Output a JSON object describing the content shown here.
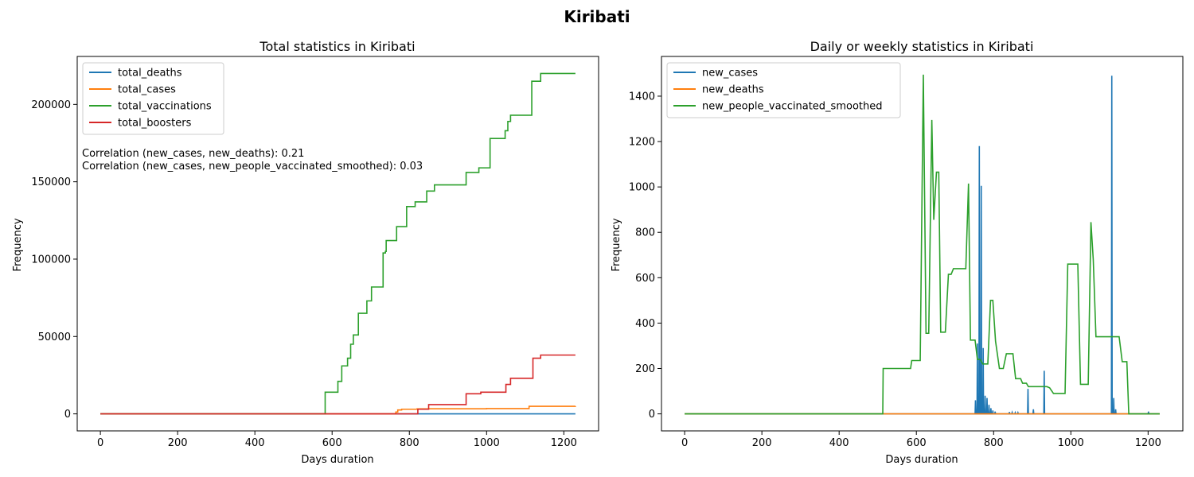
{
  "figure_title": "Kiribati",
  "chart_data": [
    {
      "type": "line",
      "title": "Total statistics in Kiribati",
      "xlabel": "Days duration",
      "ylabel": "Frequency",
      "xlim": [
        -60,
        1290
      ],
      "ylim": [
        -11000,
        231000
      ],
      "xticks": [
        0,
        200,
        400,
        600,
        800,
        1000,
        1200
      ],
      "yticks": [
        0,
        50000,
        100000,
        150000,
        200000
      ],
      "grid": false,
      "legend_position": "top-left",
      "annotations": [
        "Correlation (new_cases, new_deaths): 0.21",
        "Correlation (new_cases, new_people_vaccinated_smoothed): 0.03"
      ],
      "series": [
        {
          "name": "total_deaths",
          "color": "#1f77b4",
          "step": true,
          "points": [
            [
              0,
              0
            ],
            [
              1230,
              0
            ]
          ]
        },
        {
          "name": "total_cases",
          "color": "#ff7f0e",
          "step": true,
          "points": [
            [
              0,
              0
            ],
            [
              760,
              0
            ],
            [
              765,
              1200
            ],
            [
              770,
              2500
            ],
            [
              780,
              3000
            ],
            [
              820,
              3200
            ],
            [
              850,
              3300
            ],
            [
              1000,
              3400
            ],
            [
              1110,
              4900
            ],
            [
              1230,
              5000
            ]
          ]
        },
        {
          "name": "total_vaccinations",
          "color": "#2ca02c",
          "step": true,
          "points": [
            [
              0,
              0
            ],
            [
              580,
              0
            ],
            [
              582,
              14000
            ],
            [
              612,
              14000
            ],
            [
              615,
              21000
            ],
            [
              625,
              31000
            ],
            [
              640,
              36000
            ],
            [
              648,
              45000
            ],
            [
              655,
              51000
            ],
            [
              668,
              65000
            ],
            [
              690,
              73000
            ],
            [
              702,
              82000
            ],
            [
              730,
              82000
            ],
            [
              732,
              104000
            ],
            [
              738,
              105000
            ],
            [
              740,
              112000
            ],
            [
              765,
              112000
            ],
            [
              767,
              121000
            ],
            [
              793,
              134000
            ],
            [
              800,
              134000
            ],
            [
              815,
              137000
            ],
            [
              845,
              144000
            ],
            [
              865,
              148000
            ],
            [
              945,
              148000
            ],
            [
              947,
              156000
            ],
            [
              975,
              156000
            ],
            [
              980,
              159000
            ],
            [
              1007,
              159000
            ],
            [
              1009,
              178000
            ],
            [
              1045,
              178000
            ],
            [
              1048,
              183000
            ],
            [
              1055,
              189000
            ],
            [
              1062,
              193000
            ],
            [
              1115,
              193000
            ],
            [
              1117,
              215000
            ],
            [
              1140,
              220000
            ],
            [
              1230,
              220000
            ]
          ]
        },
        {
          "name": "total_boosters",
          "color": "#d62728",
          "step": true,
          "points": [
            [
              0,
              0
            ],
            [
              820,
              0
            ],
            [
              822,
              3000
            ],
            [
              850,
              6000
            ],
            [
              945,
              6000
            ],
            [
              947,
              13000
            ],
            [
              985,
              14000
            ],
            [
              1048,
              14000
            ],
            [
              1050,
              19000
            ],
            [
              1062,
              23000
            ],
            [
              1118,
              23000
            ],
            [
              1120,
              36000
            ],
            [
              1140,
              38000
            ],
            [
              1230,
              38000
            ]
          ]
        }
      ]
    },
    {
      "type": "line",
      "title": "Daily or weekly statistics in Kiribati",
      "xlabel": "Days duration",
      "ylabel": "Frequency",
      "xlim": [
        -60,
        1290
      ],
      "ylim": [
        -75,
        1575
      ],
      "xticks": [
        0,
        200,
        400,
        600,
        800,
        1000,
        1200
      ],
      "yticks": [
        0,
        200,
        400,
        600,
        800,
        1000,
        1200,
        1400
      ],
      "grid": false,
      "legend_position": "top-left",
      "series": [
        {
          "name": "new_cases",
          "color": "#1f77b4",
          "step": false,
          "points": [
            [
              0,
              0
            ],
            [
              752,
              0
            ],
            [
              753,
              60
            ],
            [
              754,
              0
            ],
            [
              757,
              0
            ],
            [
              758,
              310
            ],
            [
              759,
              0
            ],
            [
              762,
              0
            ],
            [
              763,
              1180
            ],
            [
              764,
              0
            ],
            [
              767,
              0
            ],
            [
              768,
              1005
            ],
            [
              769,
              0
            ],
            [
              772,
              0
            ],
            [
              773,
              290
            ],
            [
              774,
              0
            ],
            [
              777,
              0
            ],
            [
              778,
              80
            ],
            [
              779,
              0
            ],
            [
              782,
              0
            ],
            [
              783,
              70
            ],
            [
              784,
              0
            ],
            [
              787,
              0
            ],
            [
              788,
              40
            ],
            [
              789,
              0
            ],
            [
              792,
              0
            ],
            [
              793,
              25
            ],
            [
              794,
              0
            ],
            [
              797,
              0
            ],
            [
              798,
              15
            ],
            [
              799,
              0
            ],
            [
              803,
              0
            ],
            [
              804,
              10
            ],
            [
              805,
              0
            ],
            [
              840,
              0
            ],
            [
              841,
              8
            ],
            [
              842,
              0
            ],
            [
              847,
              0
            ],
            [
              848,
              6
            ],
            [
              849,
              0
            ],
            [
              855,
              0
            ],
            [
              856,
              5
            ],
            [
              857,
              0
            ],
            [
              862,
              0
            ],
            [
              863,
              5
            ],
            [
              864,
              0
            ],
            [
              888,
              0
            ],
            [
              889,
              110
            ],
            [
              890,
              0
            ],
            [
              902,
              0
            ],
            [
              903,
              20
            ],
            [
              904,
              0
            ],
            [
              930,
              0
            ],
            [
              931,
              190
            ],
            [
              932,
              0
            ],
            [
              1105,
              0
            ],
            [
              1106,
              1490
            ],
            [
              1107,
              0
            ],
            [
              1110,
              0
            ],
            [
              1111,
              70
            ],
            [
              1112,
              0
            ],
            [
              1115,
              0
            ],
            [
              1116,
              20
            ],
            [
              1117,
              0
            ],
            [
              1200,
              0
            ],
            [
              1201,
              10
            ],
            [
              1202,
              0
            ],
            [
              1230,
              0
            ]
          ]
        },
        {
          "name": "new_deaths",
          "color": "#ff7f0e",
          "step": false,
          "points": [
            [
              0,
              0
            ],
            [
              1230,
              0
            ]
          ]
        },
        {
          "name": "new_people_vaccinated_smoothed",
          "color": "#2ca02c",
          "step": false,
          "points": [
            [
              0,
              0
            ],
            [
              513,
              0
            ],
            [
              514,
              200
            ],
            [
              585,
              200
            ],
            [
              588,
              235
            ],
            [
              610,
              235
            ],
            [
              618,
              1495
            ],
            [
              625,
              355
            ],
            [
              632,
              355
            ],
            [
              640,
              1295
            ],
            [
              645,
              855
            ],
            [
              652,
              1065
            ],
            [
              658,
              1065
            ],
            [
              663,
              360
            ],
            [
              675,
              360
            ],
            [
              683,
              615
            ],
            [
              690,
              615
            ],
            [
              696,
              640
            ],
            [
              728,
              640
            ],
            [
              735,
              1015
            ],
            [
              740,
              325
            ],
            [
              752,
              325
            ],
            [
              758,
              240
            ],
            [
              765,
              240
            ],
            [
              772,
              220
            ],
            [
              785,
              220
            ],
            [
              792,
              500
            ],
            [
              798,
              500
            ],
            [
              805,
              320
            ],
            [
              815,
              200
            ],
            [
              825,
              200
            ],
            [
              833,
              265
            ],
            [
              850,
              265
            ],
            [
              857,
              155
            ],
            [
              870,
              155
            ],
            [
              875,
              135
            ],
            [
              885,
              135
            ],
            [
              890,
              120
            ],
            [
              938,
              120
            ],
            [
              945,
              115
            ],
            [
              955,
              90
            ],
            [
              985,
              90
            ],
            [
              992,
              660
            ],
            [
              1018,
              660
            ],
            [
              1025,
              130
            ],
            [
              1045,
              130
            ],
            [
              1052,
              845
            ],
            [
              1058,
              680
            ],
            [
              1065,
              340
            ],
            [
              1125,
              340
            ],
            [
              1133,
              230
            ],
            [
              1145,
              230
            ],
            [
              1150,
              0
            ],
            [
              1230,
              0
            ]
          ]
        }
      ]
    }
  ]
}
